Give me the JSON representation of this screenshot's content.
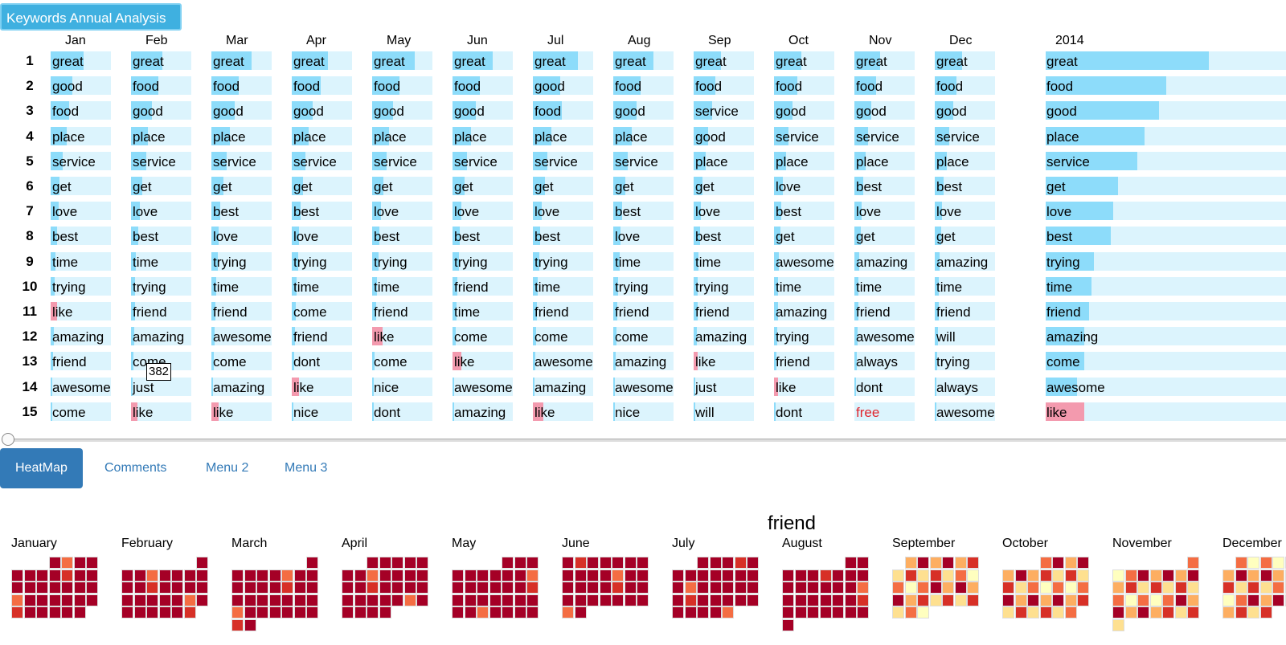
{
  "title_button": "Keywords Annual Analysis",
  "tooltip": "382",
  "year_label": "2014",
  "colors": {
    "bar_bg": "#dcf4fd",
    "bar_pos": "#8ddcfa",
    "bar_neg": "#f39aae",
    "tab_active": "#337ab7"
  },
  "months": [
    {
      "name": "Jan",
      "words": [
        "great",
        "good",
        "food",
        "place",
        "service",
        "get",
        "love",
        "best",
        "time",
        "trying",
        "like",
        "amazing",
        "friend",
        "awesome",
        "come"
      ],
      "fill": [
        0.55,
        0.36,
        0.3,
        0.26,
        0.2,
        0.15,
        0.13,
        0.11,
        0.08,
        0.07,
        0.1,
        0.05,
        0.04,
        0.03,
        0.02
      ],
      "neg": [
        false,
        false,
        false,
        false,
        false,
        false,
        false,
        false,
        false,
        false,
        true,
        false,
        false,
        false,
        false
      ]
    },
    {
      "name": "Feb",
      "words": [
        "great",
        "food",
        "good",
        "place",
        "service",
        "get",
        "love",
        "best",
        "time",
        "trying",
        "friend",
        "amazing",
        "come",
        "just",
        "like"
      ],
      "fill": [
        0.52,
        0.45,
        0.35,
        0.28,
        0.25,
        0.18,
        0.15,
        0.12,
        0.08,
        0.07,
        0.06,
        0.05,
        0.04,
        0.03,
        0.1
      ],
      "neg": [
        false,
        false,
        false,
        false,
        false,
        false,
        false,
        false,
        false,
        false,
        false,
        false,
        false,
        false,
        true
      ]
    },
    {
      "name": "Mar",
      "words": [
        "great",
        "food",
        "good",
        "place",
        "service",
        "get",
        "best",
        "love",
        "trying",
        "time",
        "friend",
        "awesome",
        "come",
        "amazing",
        "like"
      ],
      "fill": [
        0.66,
        0.45,
        0.38,
        0.3,
        0.25,
        0.2,
        0.14,
        0.12,
        0.1,
        0.08,
        0.06,
        0.05,
        0.04,
        0.03,
        0.12
      ],
      "neg": [
        false,
        false,
        false,
        false,
        false,
        false,
        false,
        false,
        false,
        false,
        false,
        false,
        false,
        false,
        true
      ]
    },
    {
      "name": "Apr",
      "words": [
        "great",
        "food",
        "good",
        "place",
        "service",
        "get",
        "best",
        "love",
        "trying",
        "time",
        "come",
        "friend",
        "dont",
        "like",
        "nice"
      ],
      "fill": [
        0.6,
        0.48,
        0.35,
        0.28,
        0.23,
        0.18,
        0.14,
        0.12,
        0.1,
        0.08,
        0.06,
        0.05,
        0.04,
        0.12,
        0.03
      ],
      "neg": [
        false,
        false,
        false,
        false,
        false,
        false,
        false,
        false,
        false,
        false,
        false,
        false,
        false,
        true,
        false
      ]
    },
    {
      "name": "May",
      "words": [
        "great",
        "food",
        "good",
        "place",
        "service",
        "get",
        "love",
        "best",
        "trying",
        "time",
        "friend",
        "like",
        "come",
        "nice",
        "dont"
      ],
      "fill": [
        0.7,
        0.45,
        0.35,
        0.28,
        0.24,
        0.18,
        0.14,
        0.12,
        0.1,
        0.08,
        0.06,
        0.17,
        0.04,
        0.03,
        0.03
      ],
      "neg": [
        false,
        false,
        false,
        false,
        false,
        false,
        false,
        false,
        false,
        false,
        false,
        true,
        false,
        false,
        false
      ]
    },
    {
      "name": "Jun",
      "words": [
        "great",
        "food",
        "good",
        "place",
        "service",
        "get",
        "love",
        "best",
        "trying",
        "friend",
        "time",
        "come",
        "like",
        "awesome",
        "amazing"
      ],
      "fill": [
        0.66,
        0.45,
        0.38,
        0.3,
        0.24,
        0.2,
        0.14,
        0.12,
        0.1,
        0.08,
        0.06,
        0.05,
        0.14,
        0.03,
        0.03
      ],
      "neg": [
        false,
        false,
        false,
        false,
        false,
        false,
        false,
        false,
        false,
        false,
        false,
        false,
        true,
        false,
        false
      ]
    },
    {
      "name": "Jul",
      "words": [
        "great",
        "good",
        "food",
        "place",
        "service",
        "get",
        "love",
        "best",
        "trying",
        "time",
        "friend",
        "come",
        "awesome",
        "amazing",
        "like"
      ],
      "fill": [
        0.75,
        0.45,
        0.48,
        0.3,
        0.24,
        0.2,
        0.14,
        0.12,
        0.1,
        0.08,
        0.06,
        0.05,
        0.04,
        0.03,
        0.17
      ],
      "neg": [
        false,
        false,
        false,
        false,
        false,
        false,
        false,
        false,
        false,
        false,
        false,
        false,
        false,
        false,
        true
      ]
    },
    {
      "name": "Aug",
      "words": [
        "great",
        "food",
        "good",
        "place",
        "service",
        "get",
        "best",
        "love",
        "time",
        "trying",
        "friend",
        "come",
        "amazing",
        "awesome",
        "nice"
      ],
      "fill": [
        0.66,
        0.45,
        0.38,
        0.3,
        0.24,
        0.2,
        0.14,
        0.12,
        0.1,
        0.08,
        0.06,
        0.05,
        0.04,
        0.03,
        0.02
      ],
      "neg": [
        false,
        false,
        false,
        false,
        false,
        false,
        false,
        false,
        false,
        false,
        false,
        false,
        false,
        false,
        false
      ]
    },
    {
      "name": "Sep",
      "words": [
        "great",
        "food",
        "service",
        "good",
        "place",
        "get",
        "love",
        "best",
        "time",
        "trying",
        "friend",
        "amazing",
        "like",
        "just",
        "will"
      ],
      "fill": [
        0.45,
        0.36,
        0.3,
        0.24,
        0.2,
        0.15,
        0.12,
        0.1,
        0.08,
        0.07,
        0.06,
        0.05,
        0.07,
        0.03,
        0.02
      ],
      "neg": [
        false,
        false,
        false,
        false,
        false,
        false,
        false,
        false,
        false,
        false,
        false,
        false,
        true,
        false,
        false
      ]
    },
    {
      "name": "Oct",
      "words": [
        "great",
        "food",
        "good",
        "service",
        "place",
        "love",
        "best",
        "get",
        "awesome",
        "time",
        "amazing",
        "trying",
        "friend",
        "like",
        "dont"
      ],
      "fill": [
        0.45,
        0.38,
        0.3,
        0.24,
        0.2,
        0.15,
        0.12,
        0.1,
        0.08,
        0.07,
        0.06,
        0.05,
        0.04,
        0.07,
        0.02
      ],
      "neg": [
        false,
        false,
        false,
        false,
        false,
        false,
        false,
        false,
        false,
        false,
        false,
        false,
        false,
        true,
        false
      ]
    },
    {
      "name": "Nov",
      "words": [
        "great",
        "food",
        "good",
        "service",
        "place",
        "best",
        "love",
        "get",
        "amazing",
        "time",
        "friend",
        "awesome",
        "always",
        "dont",
        "free"
      ],
      "fill": [
        0.42,
        0.36,
        0.28,
        0.22,
        0.18,
        0.14,
        0.12,
        0.1,
        0.08,
        0.07,
        0.06,
        0.05,
        0.04,
        0.03,
        0.0
      ],
      "neg": [
        false,
        false,
        false,
        false,
        false,
        false,
        false,
        false,
        false,
        false,
        false,
        false,
        false,
        false,
        false
      ]
    },
    {
      "name": "Dec",
      "words": [
        "great",
        "food",
        "good",
        "service",
        "place",
        "best",
        "love",
        "get",
        "amazing",
        "time",
        "friend",
        "will",
        "trying",
        "always",
        "awesome"
      ],
      "fill": [
        0.45,
        0.36,
        0.3,
        0.24,
        0.2,
        0.15,
        0.12,
        0.1,
        0.08,
        0.07,
        0.06,
        0.05,
        0.04,
        0.03,
        0.02
      ],
      "neg": [
        false,
        false,
        false,
        false,
        false,
        false,
        false,
        false,
        false,
        false,
        false,
        false,
        false,
        false,
        false
      ]
    }
  ],
  "year": {
    "words": [
      "great",
      "food",
      "good",
      "place",
      "service",
      "get",
      "love",
      "best",
      "trying",
      "time",
      "friend",
      "amazing",
      "come",
      "awesome",
      "like"
    ],
    "fill": [
      0.68,
      0.5,
      0.47,
      0.41,
      0.38,
      0.3,
      0.28,
      0.27,
      0.2,
      0.19,
      0.18,
      0.16,
      0.16,
      0.13,
      0.16
    ],
    "neg": [
      false,
      false,
      false,
      false,
      false,
      false,
      false,
      false,
      false,
      false,
      false,
      false,
      false,
      false,
      true
    ]
  },
  "ranks": [
    "1",
    "2",
    "3",
    "4",
    "5",
    "6",
    "7",
    "8",
    "9",
    "10",
    "11",
    "12",
    "13",
    "14",
    "15"
  ],
  "tabs": [
    "HeatMap",
    "Comments",
    "Menu 2",
    "Menu 3"
  ],
  "heatmap": {
    "keyword": "friend",
    "months": [
      "January",
      "February",
      "March",
      "April",
      "May",
      "June",
      "July",
      "August",
      "September",
      "October",
      "November",
      "December"
    ],
    "palette": [
      "#a50026",
      "#d73027",
      "#f46d43",
      "#fdae61",
      "#fee090",
      "#ffffbf"
    ]
  }
}
